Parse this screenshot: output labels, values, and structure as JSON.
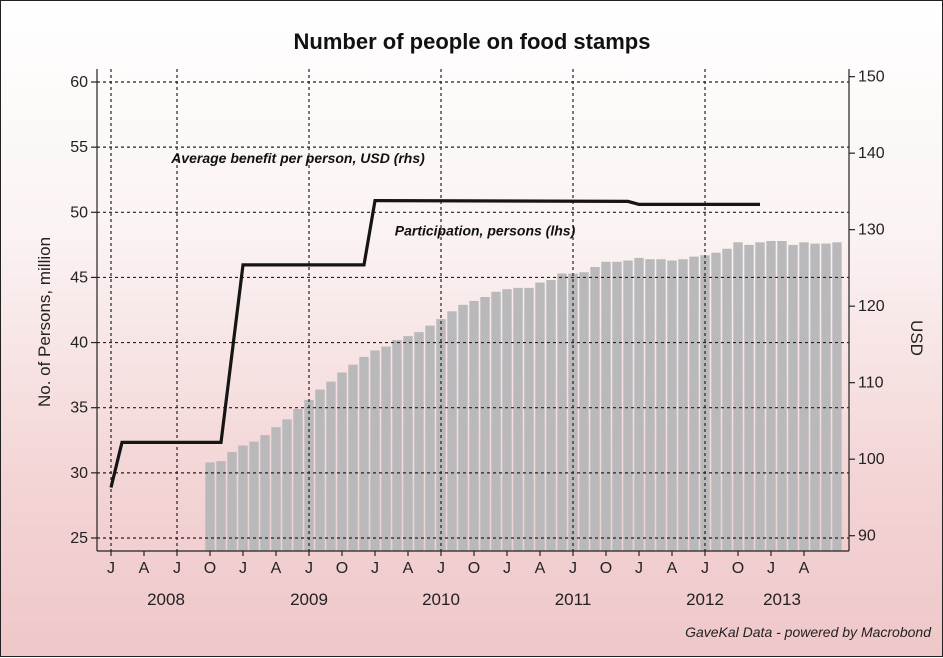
{
  "chart_data": {
    "type": "bar",
    "title": "Number of people on food stamps",
    "ylabel_left": "No. of Persons, million",
    "ylabel_right": "USD",
    "ylim_left": [
      24,
      61
    ],
    "ylim_right": [
      88,
      151
    ],
    "yticks_left": [
      25,
      30,
      35,
      40,
      45,
      50,
      55,
      60
    ],
    "yticks_right": [
      90,
      100,
      110,
      120,
      130,
      140,
      150
    ],
    "grid": true,
    "x_tick_labels": [
      "J",
      "A",
      "J",
      "O",
      "J",
      "A",
      "J",
      "O",
      "J",
      "A",
      "J",
      "O",
      "J",
      "A",
      "J",
      "O",
      "J",
      "A",
      "J",
      "O",
      "J",
      "A"
    ],
    "x_tick_months": [
      "2008-07",
      "2008-10",
      "2009-01",
      "2009-04",
      "2009-07",
      "2009-10",
      "2010-01",
      "2010-04",
      "2010-07",
      "2010-10",
      "2011-01",
      "2011-04",
      "2011-07",
      "2011-10",
      "2012-01",
      "2012-04",
      "2012-07",
      "2012-10",
      "2013-01",
      "2013-04",
      "2013-07",
      "2013-10"
    ],
    "year_labels": [
      {
        "label": "2008",
        "month": "2008-12"
      },
      {
        "label": "2009",
        "month": "2010-01"
      },
      {
        "label": "2010",
        "month": "2011-01"
      },
      {
        "label": "2011",
        "month": "2012-01"
      },
      {
        "label": "2012",
        "month": "2013-01"
      },
      {
        "label": "2013",
        "month": "2013-08"
      }
    ],
    "series": [
      {
        "name": "Participation, persons (lhs)",
        "type": "bar",
        "axis": "left",
        "start_month": "2009-04",
        "values": [
          30.8,
          30.9,
          31.6,
          32.1,
          32.4,
          32.9,
          33.5,
          34.1,
          34.9,
          35.6,
          36.4,
          37.0,
          37.7,
          38.3,
          38.9,
          39.4,
          39.7,
          40.2,
          40.5,
          40.8,
          41.3,
          41.8,
          42.4,
          42.9,
          43.2,
          43.5,
          43.9,
          44.1,
          44.2,
          44.2,
          44.6,
          44.8,
          45.3,
          45.3,
          45.4,
          45.8,
          46.2,
          46.2,
          46.3,
          46.5,
          46.4,
          46.4,
          46.3,
          46.4,
          46.6,
          46.7,
          46.9,
          47.2,
          47.7,
          47.5,
          47.7,
          47.8,
          47.8,
          47.5,
          47.7,
          47.6,
          47.6,
          47.7
        ]
      },
      {
        "name": "Average benefit per person, USD (rhs)",
        "type": "line",
        "axis": "right",
        "points": [
          {
            "month": "2008-07",
            "value": 96.3
          },
          {
            "month": "2008-08",
            "value": 102.2
          },
          {
            "month": "2009-05",
            "value": 102.2
          },
          {
            "month": "2009-07",
            "value": 125.4
          },
          {
            "month": "2010-06",
            "value": 125.4
          },
          {
            "month": "2010-07",
            "value": 133.8
          },
          {
            "month": "2012-06",
            "value": 133.7
          },
          {
            "month": "2012-07",
            "value": 133.3
          },
          {
            "month": "2013-06",
            "value": 133.3
          }
        ]
      }
    ],
    "annotations": [
      {
        "text": "Average benefit per person, USD (rhs)",
        "month": "2009-12",
        "value_left": 53.8
      },
      {
        "text": "Participation, persons (lhs)",
        "month": "2011-05",
        "value_left": 48.2
      }
    ],
    "colors": {
      "bars": "#b9b9bb",
      "line": "#151515",
      "grid": "#222222"
    },
    "source": "GaveKal Data - powered by Macrobond"
  }
}
